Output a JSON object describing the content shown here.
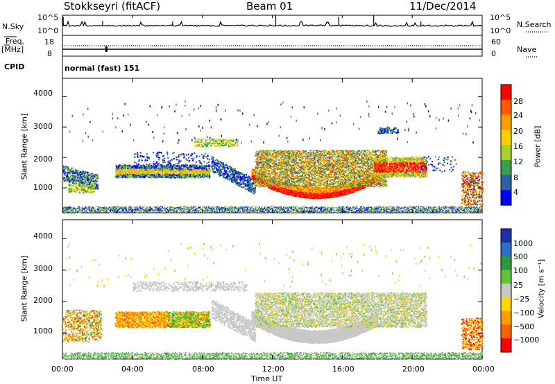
{
  "header": {
    "station": "Stokkseyri (fitACF)",
    "beam": "Beam 01",
    "date": "11/Dec/2014"
  },
  "top_panels": {
    "nsky_label": "N.Sky",
    "nsky_ticks": [
      "10^5",
      "10^0"
    ],
    "nsearch_label": "N.Search",
    "nsearch_ticks": [
      "10^5",
      "10^0"
    ],
    "freq_label": "Freq.",
    "freq_unit": "[MHz]",
    "freq_ticks": [
      "18",
      "8"
    ],
    "nave_label": "Nave",
    "nave_ticks": [
      "60",
      "0"
    ],
    "cpid_label": "CPID",
    "cpid_text": "normal (fast) 151"
  },
  "chart_data": [
    {
      "type": "heatmap",
      "name_panel": "power",
      "ylabel": "Slant Range [km]",
      "yticks": [
        1000,
        2000,
        3000,
        4000
      ],
      "ylim": [
        180,
        4600
      ],
      "xlim": [
        0,
        24
      ],
      "colorbar_label": "Power [dB]",
      "colorbar_ticks": [
        "28",
        "24",
        "20",
        "16",
        "12",
        "8",
        "4"
      ],
      "colorbar_colors": [
        "#ff0000",
        "#ff5a00",
        "#ff9c00",
        "#ffd000",
        "#a8d22a",
        "#3c9e4a",
        "#2a60a8",
        "#0000ff"
      ]
    },
    {
      "type": "heatmap",
      "name_panel": "velocity",
      "ylabel": "Slant Range [km]",
      "yticks": [
        1000,
        2000,
        3000,
        4000
      ],
      "ylim": [
        180,
        4600
      ],
      "xlim": [
        0,
        24
      ],
      "colorbar_label": "Velocity [m s⁻¹]",
      "colorbar_ticks": [
        "1000",
        "500",
        "100",
        "25",
        "−25",
        "−100",
        "−500",
        "−1000"
      ],
      "colorbar_colors": [
        "#1f2fa8",
        "#2e6cc8",
        "#2f9a3c",
        "#62c23a",
        "#c8c8c8",
        "#ffd800",
        "#ff9c00",
        "#ff6000",
        "#ff0000"
      ]
    }
  ],
  "xaxis": {
    "ticks": [
      "00:00",
      "04:00",
      "08:00",
      "12:00",
      "16:00",
      "20:00",
      "00:00"
    ],
    "label": "Time UT"
  }
}
